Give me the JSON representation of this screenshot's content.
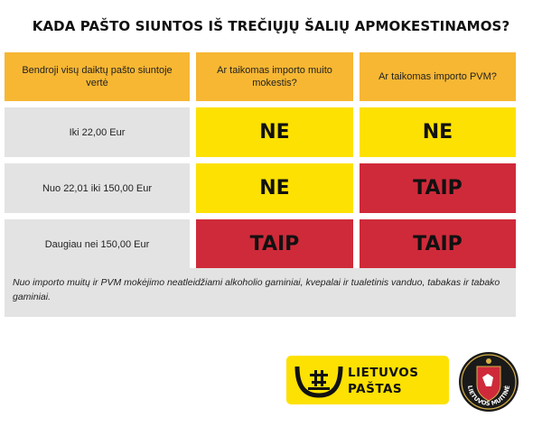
{
  "title": "KADA PAŠTO SIUNTOS IŠ TREČIŲJŲ ŠALIŲ APMOKESTINAMOS?",
  "table": {
    "headers": [
      "Bendroji visų daiktų pašto siuntoje vertė",
      "Ar taikomas importo muito mokestis?",
      "Ar taikomas importo PVM?"
    ],
    "rows": [
      {
        "label": "Iki 22,00 Eur",
        "duty": "NE",
        "vat": "NE"
      },
      {
        "label": "Nuo 22,01 iki 150,00 Eur",
        "duty": "NE",
        "vat": "TAIP"
      },
      {
        "label": "Daugiau nei 150,00 Eur",
        "duty": "TAIP",
        "vat": "TAIP"
      }
    ]
  },
  "note": "Nuo importo muitų ir PVM mokėjimo neatleidžiami alkoholio gaminiai, kvepalai ir tualetinis vanduo, tabakas ir tabako gaminiai.",
  "logo": {
    "line1": "LIETUVOS",
    "line2": "PAŠTAS"
  },
  "seal": {
    "text": "LIETUVOS MUITINĖ",
    "icon": "lietuvos-muitine-seal-icon"
  },
  "colors": {
    "header": "#f7b733",
    "label": "#e3e3e3",
    "yes": "#cf2a3a",
    "no": "#fde102"
  }
}
